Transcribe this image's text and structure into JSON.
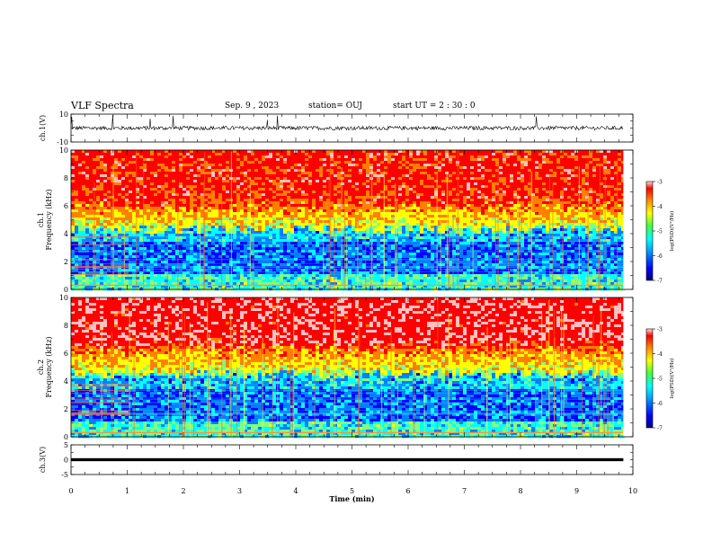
{
  "header": {
    "title": "VLF Spectra",
    "date": "Sep. 9 , 2023",
    "station": "station= OUJ",
    "start": "start  UT =   2  : 30 : 0"
  },
  "chart_data": {
    "type": "heatmap",
    "x_axis": {
      "label": "Time  (min)",
      "range": [
        0,
        10
      ],
      "ticks": [
        0,
        1,
        2,
        3,
        4,
        5,
        6,
        7,
        8,
        9,
        10
      ]
    },
    "panels": [
      {
        "id": "ch1-waveform",
        "type": "line",
        "ylabel": "ch.1(V)",
        "ylim": [
          -10,
          10
        ],
        "ytick_labels": [
          "10",
          "-10"
        ],
        "description_values": {
          "baseline": 0,
          "typical_amplitude": 2,
          "data_end_min": 9.83
        }
      },
      {
        "id": "ch1-spectrogram",
        "type": "heatmap",
        "ylabel_lines": [
          "ch.1",
          "Frequency  (kHz)"
        ],
        "ylim": [
          0,
          10
        ],
        "ytick_labels": [
          "10",
          "8",
          "6",
          "4",
          "2",
          "0"
        ],
        "bands_khz": {
          "high_power_above": 6.3,
          "transition_above": 4.3,
          "low_power_band": [
            1.0,
            4.0
          ]
        },
        "colorbar": {
          "range": [
            -7,
            -3
          ],
          "tick_labels": [
            "-3",
            "-4",
            "-5",
            "-6",
            "-7"
          ],
          "label": "log(PSD)(V²/Hz)"
        }
      },
      {
        "id": "ch2-spectrogram",
        "type": "heatmap",
        "ylabel_lines": [
          "ch.2",
          "Frequency  (kHz)"
        ],
        "ylim": [
          0,
          10
        ],
        "ytick_labels": [
          "10",
          "8",
          "6",
          "4",
          "2",
          "0"
        ],
        "bands_khz": {
          "high_power_above": 6.6,
          "transition_above": 4.5,
          "low_power_band": [
            1.0,
            4.0
          ]
        },
        "colorbar": {
          "range": [
            -7,
            -3
          ],
          "tick_labels": [
            "-3",
            "-4",
            "-5",
            "-6",
            "-7"
          ],
          "label": "log(PSD)(V²/Hz)"
        }
      },
      {
        "id": "ch3-waveform",
        "type": "line",
        "ylabel": "ch.3(V)",
        "ylim": [
          -5,
          5
        ],
        "ytick_labels": [
          "5",
          "0",
          "-5"
        ],
        "description_values": {
          "baseline": 0,
          "data_end_min": 9.83
        }
      }
    ],
    "colormap": [
      "#000080",
      "#0000ff",
      "#0080ff",
      "#00ffff",
      "#80ff80",
      "#ffff00",
      "#ff8000",
      "#ff0000",
      "#ffc0c0"
    ]
  }
}
